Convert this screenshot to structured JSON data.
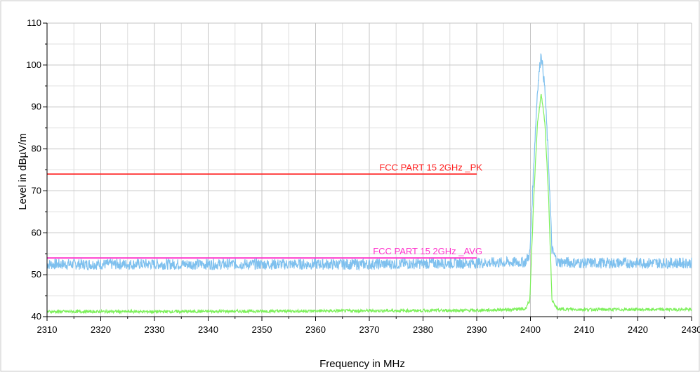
{
  "chart_data": {
    "type": "line",
    "title": "",
    "xlabel": "Frequency in MHz",
    "ylabel": "Level in dBµV/m",
    "xlim": [
      2310,
      2430
    ],
    "ylim": [
      40,
      110
    ],
    "x_ticks": [
      2310,
      2320,
      2330,
      2340,
      2350,
      2360,
      2370,
      2380,
      2390,
      2400,
      2410,
      2420,
      2430
    ],
    "y_ticks": [
      40,
      50,
      60,
      70,
      80,
      90,
      100,
      110
    ],
    "grid": true,
    "limit_lines": [
      {
        "name": "FCC PART 15 2GHz _PK",
        "y": 74,
        "x": [
          2310,
          2390
        ],
        "color": "#ff2020"
      },
      {
        "name": "FCC PART 15 2GHz _AVG",
        "y": 54,
        "x": [
          2310,
          2390
        ],
        "color": "#ff33cc"
      }
    ],
    "series": [
      {
        "color": "#7ec0ee",
        "x": [
          2310,
          2330,
          2350,
          2370,
          2390,
          2399,
          2399.9,
          2400.6,
          2401.3,
          2402,
          2402.7,
          2403.4,
          2404,
          2405,
          2410,
          2420,
          2430
        ],
        "y": [
          52.5,
          52.5,
          52.5,
          52.5,
          52.8,
          53,
          55,
          76,
          94,
          103,
          94,
          76,
          56,
          53,
          52.8,
          52.8,
          52.8
        ]
      },
      {
        "color": "#7cf05a",
        "x": [
          2310,
          2330,
          2350,
          2370,
          2390,
          2399,
          2399.9,
          2400.6,
          2401.3,
          2402,
          2402.7,
          2403.4,
          2404,
          2405,
          2410,
          2420,
          2430
        ],
        "y": [
          41.2,
          41.2,
          41.3,
          41.4,
          41.5,
          41.8,
          44,
          68,
          86,
          93,
          86,
          68,
          44,
          41.8,
          41.7,
          41.7,
          41.7
        ]
      }
    ]
  }
}
